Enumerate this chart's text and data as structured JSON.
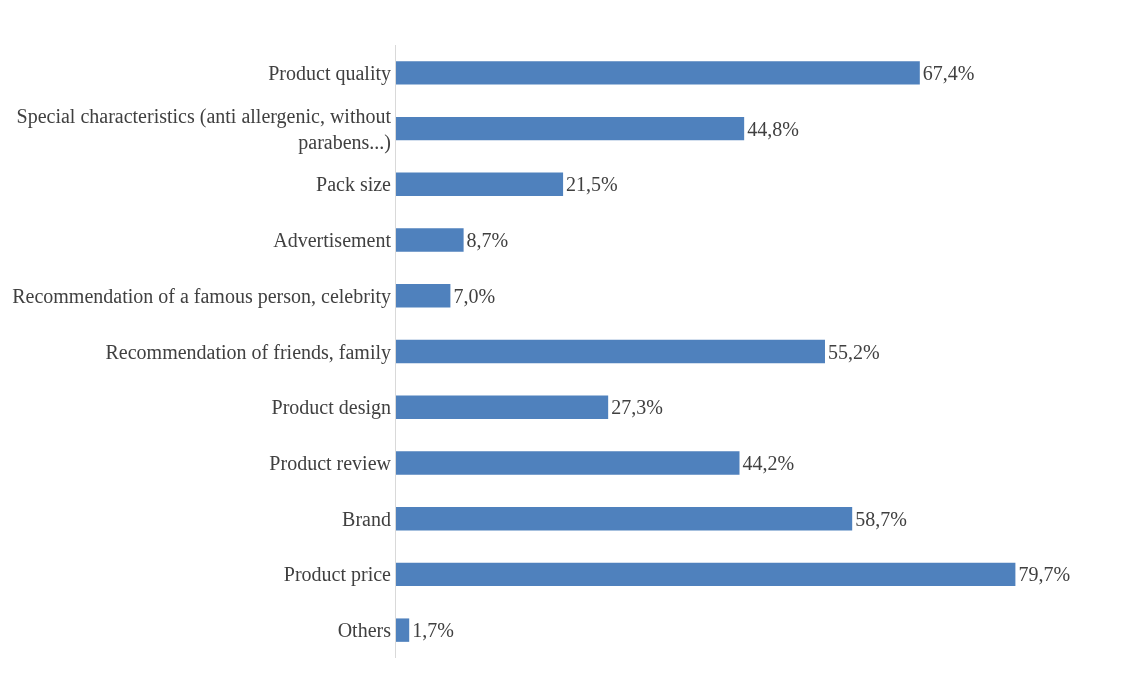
{
  "chart_data": {
    "type": "bar",
    "orientation": "horizontal",
    "categories": [
      "Product quality",
      "Special characteristics (anti allergenic, without parabens...)",
      "Pack size",
      "Advertisement",
      "Recommendation of a famous person, celebrity",
      "Recommendation of friends, family",
      "Product design",
      "Product review",
      "Brand",
      "Product price",
      "Others"
    ],
    "values": [
      67.4,
      44.8,
      21.5,
      8.7,
      7.0,
      55.2,
      27.3,
      44.2,
      58.7,
      79.7,
      1.7
    ],
    "value_labels": [
      "67,4%",
      "44,8%",
      "21,5%",
      "8,7%",
      "7,0%",
      "55,2%",
      "27,3%",
      "44,2%",
      "58,7%",
      "79,7%",
      "1,7%"
    ],
    "color": "#4f81bd"
  }
}
